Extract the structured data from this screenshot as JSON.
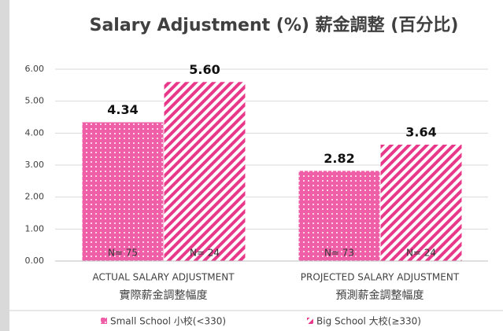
{
  "chart_data": {
    "type": "bar",
    "title": "Salary Adjustment (%) 薪金調整 (百分比)",
    "categories": [
      [
        "ACTUAL SALARY ADJUSTMENT",
        "實際薪金調整幅度"
      ],
      [
        "PROJECTED SALARY ADJUSTMENT",
        "預測薪金調整幅度"
      ]
    ],
    "series": [
      {
        "name": "Small School 小校(<330)",
        "color": "#ef5fa7",
        "pattern": "dots",
        "values": [
          4.34,
          2.82
        ],
        "value_labels": [
          "4.34",
          "2.82"
        ],
        "n_labels": [
          "N= 75",
          "N= 73"
        ]
      },
      {
        "name": "Big School 大校(≥330)",
        "color": "#e8388a",
        "pattern": "stripes",
        "values": [
          5.6,
          3.64
        ],
        "value_labels": [
          "5.60",
          "3.64"
        ],
        "n_labels": [
          "N= 24",
          "N= 24"
        ]
      }
    ],
    "ylim": [
      0,
      6
    ],
    "yticks": [
      {
        "value": 0,
        "label": "0.00"
      },
      {
        "value": 1,
        "label": "1.00"
      },
      {
        "value": 2,
        "label": "2.00"
      },
      {
        "value": 3,
        "label": "3.00"
      },
      {
        "value": 4,
        "label": "4.00"
      },
      {
        "value": 5,
        "label": "5.00"
      },
      {
        "value": 6,
        "label": "6.00"
      }
    ],
    "grid": true,
    "legend": "bottom"
  }
}
